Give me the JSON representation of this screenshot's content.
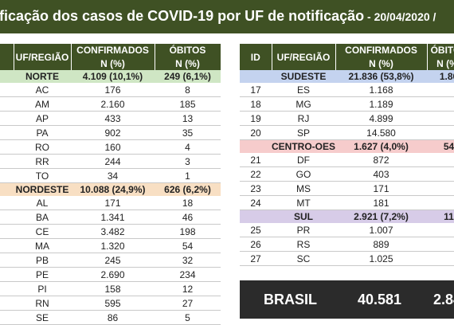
{
  "title": {
    "main": "ificação dos casos de COVID-19 por UF de notificação",
    "date": " - 20/04/2020 /"
  },
  "left_table": {
    "headers": {
      "uf": "UF/REGIÃO",
      "confirmados": "CONFIRMADOS",
      "obitos": "ÓBITOS",
      "unit": "N (%)"
    },
    "rows": [
      {
        "type": "region",
        "class": "norte",
        "name": "NORTE",
        "confirmados": "4.109 (10,1%)",
        "obitos": "249 (6,1%)"
      },
      {
        "type": "uf",
        "name": "AC",
        "confirmados": "176",
        "obitos": "8"
      },
      {
        "type": "uf",
        "name": "AM",
        "confirmados": "2.160",
        "obitos": "185"
      },
      {
        "type": "uf",
        "name": "AP",
        "confirmados": "433",
        "obitos": "13"
      },
      {
        "type": "uf",
        "name": "PA",
        "confirmados": "902",
        "obitos": "35"
      },
      {
        "type": "uf",
        "name": "RO",
        "confirmados": "160",
        "obitos": "4"
      },
      {
        "type": "uf",
        "name": "RR",
        "confirmados": "244",
        "obitos": "3"
      },
      {
        "type": "uf",
        "name": "TO",
        "confirmados": "34",
        "obitos": "1"
      },
      {
        "type": "region",
        "class": "nordeste",
        "name": "NORDESTE",
        "confirmados": "10.088 (24,9%)",
        "obitos": "626 (6,2%)"
      },
      {
        "type": "uf",
        "name": "AL",
        "confirmados": "171",
        "obitos": "18"
      },
      {
        "type": "uf",
        "name": "BA",
        "confirmados": "1.341",
        "obitos": "46"
      },
      {
        "type": "uf",
        "name": "CE",
        "confirmados": "3.482",
        "obitos": "198"
      },
      {
        "type": "uf",
        "name": "MA",
        "confirmados": "1.320",
        "obitos": "54"
      },
      {
        "type": "uf",
        "name": "PB",
        "confirmados": "245",
        "obitos": "32"
      },
      {
        "type": "uf",
        "name": "PE",
        "confirmados": "2.690",
        "obitos": "234"
      },
      {
        "type": "uf",
        "name": "PI",
        "confirmados": "158",
        "obitos": "12"
      },
      {
        "type": "uf",
        "name": "RN",
        "confirmados": "595",
        "obitos": "27"
      },
      {
        "type": "uf",
        "name": "SE",
        "confirmados": "86",
        "obitos": "5"
      }
    ]
  },
  "right_table": {
    "headers": {
      "id": "ID",
      "uf": "UF/REGIÃO",
      "confirmados": "CONFIRMADOS",
      "obitos": "ÓBITOS",
      "unit": "N (%)"
    },
    "rows": [
      {
        "type": "region",
        "class": "sudeste",
        "name": "SUDESTE",
        "confirmados": "21.836 (53,8%)",
        "obitos": "1.80"
      },
      {
        "type": "uf",
        "id": "17",
        "name": "ES",
        "confirmados": "1.168",
        "obitos": ""
      },
      {
        "type": "uf",
        "id": "18",
        "name": "MG",
        "confirmados": "1.189",
        "obitos": ""
      },
      {
        "type": "uf",
        "id": "19",
        "name": "RJ",
        "confirmados": "4.899",
        "obitos": ""
      },
      {
        "type": "uf",
        "id": "20",
        "name": "SP",
        "confirmados": "14.580",
        "obitos": ""
      },
      {
        "type": "region",
        "class": "co",
        "name": "CENTRO-OESTE",
        "confirmados": "1.627 (4,0%)",
        "obitos": "54"
      },
      {
        "type": "uf",
        "id": "21",
        "name": "DF",
        "confirmados": "872",
        "obitos": ""
      },
      {
        "type": "uf",
        "id": "22",
        "name": "GO",
        "confirmados": "403",
        "obitos": ""
      },
      {
        "type": "uf",
        "id": "23",
        "name": "MS",
        "confirmados": "171",
        "obitos": ""
      },
      {
        "type": "uf",
        "id": "24",
        "name": "MT",
        "confirmados": "181",
        "obitos": ""
      },
      {
        "type": "region",
        "class": "sul",
        "name": "SUL",
        "confirmados": "2.921 (7,2%)",
        "obitos": "11"
      },
      {
        "type": "uf",
        "id": "25",
        "name": "PR",
        "confirmados": "1.007",
        "obitos": ""
      },
      {
        "type": "uf",
        "id": "26",
        "name": "RS",
        "confirmados": "889",
        "obitos": ""
      },
      {
        "type": "uf",
        "id": "27",
        "name": "SC",
        "confirmados": "1.025",
        "obitos": ""
      }
    ]
  },
  "brasil": {
    "label": "BRASIL",
    "confirmados": "40.581",
    "obitos": "2.84"
  }
}
